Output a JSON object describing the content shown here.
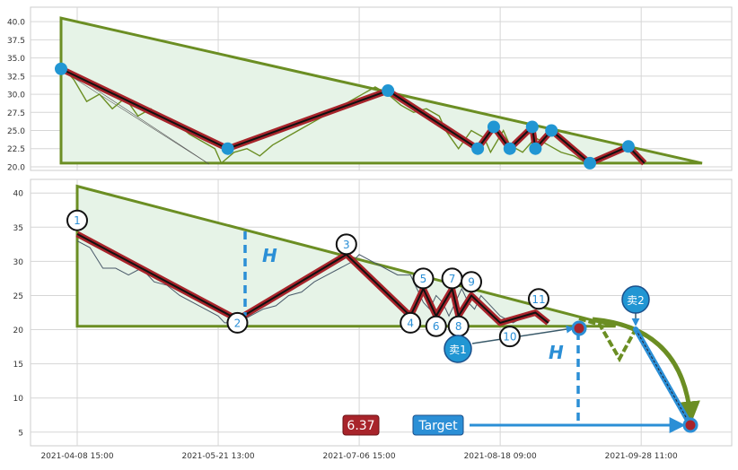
{
  "chart_data": [
    {
      "type": "line",
      "panel": "top",
      "title": "",
      "ylim": [
        19.5,
        42
      ],
      "yticks": [
        "20.0",
        "22.5",
        "25.0",
        "27.5",
        "30.0",
        "32.5",
        "35.0",
        "37.5",
        "40.0"
      ],
      "ytick_values": [
        20,
        22.5,
        25,
        27.5,
        30,
        32.5,
        35,
        37.5,
        40
      ],
      "grid": true,
      "series": [
        {
          "role": "price",
          "color": "#6b8e23",
          "points": [
            [
              0,
              34
            ],
            [
              4,
              32
            ],
            [
              8,
              29
            ],
            [
              12,
              30
            ],
            [
              16,
              28
            ],
            [
              20,
              29.5
            ],
            [
              24,
              27
            ],
            [
              28,
              28
            ],
            [
              32,
              26.5
            ],
            [
              36,
              26
            ],
            [
              40,
              24.5
            ],
            [
              44,
              23.5
            ],
            [
              48,
              22.5
            ],
            [
              50,
              20.5
            ],
            [
              54,
              22
            ],
            [
              58,
              22.5
            ],
            [
              62,
              21.5
            ],
            [
              66,
              23
            ],
            [
              70,
              24
            ],
            [
              74,
              25
            ],
            [
              78,
              26
            ],
            [
              82,
              27
            ],
            [
              86,
              28
            ],
            [
              90,
              29
            ],
            [
              94,
              30
            ],
            [
              98,
              31
            ],
            [
              102,
              30
            ],
            [
              106,
              28.5
            ],
            [
              110,
              27.5
            ],
            [
              114,
              28
            ],
            [
              118,
              27
            ],
            [
              120,
              25
            ],
            [
              124,
              22.5
            ],
            [
              128,
              25
            ],
            [
              132,
              24
            ],
            [
              134,
              22
            ],
            [
              138,
              25
            ],
            [
              140,
              23
            ],
            [
              144,
              22
            ],
            [
              148,
              24
            ],
            [
              152,
              23
            ],
            [
              156,
              22
            ],
            [
              160,
              21.5
            ],
            [
              164,
              20.5
            ],
            [
              168,
              21
            ],
            [
              172,
              22
            ],
            [
              176,
              22.5
            ],
            [
              180,
              22
            ]
          ]
        },
        {
          "role": "zigzag",
          "color": "#a8242b",
          "points": [
            [
              0,
              33.5
            ],
            [
              52,
              22.5
            ],
            [
              102,
              30.5
            ],
            [
              130,
              22.5
            ],
            [
              135,
              25.5
            ],
            [
              140,
              22.5
            ],
            [
              147,
              25.5
            ],
            [
              148,
              22.5
            ],
            [
              153,
              25
            ],
            [
              165,
              20.5
            ],
            [
              177,
              22.8
            ],
            [
              182,
              20.5
            ]
          ]
        }
      ],
      "turning_points": [
        [
          0,
          33.5
        ],
        [
          52,
          22.5
        ],
        [
          102,
          30.5
        ],
        [
          130,
          22.5
        ],
        [
          135,
          25.5
        ],
        [
          140,
          22.5
        ],
        [
          147,
          25.5
        ],
        [
          148,
          22.5
        ],
        [
          153,
          25
        ],
        [
          165,
          20.5
        ],
        [
          177,
          22.8
        ]
      ],
      "triangle": [
        [
          0,
          40.5
        ],
        [
          0,
          20.5
        ],
        [
          200,
          20.5
        ]
      ]
    },
    {
      "type": "line",
      "panel": "bottom",
      "title": "",
      "ylim": [
        3,
        42
      ],
      "yticks": [
        "5",
        "10",
        "15",
        "20",
        "25",
        "30",
        "35",
        "40"
      ],
      "ytick_values": [
        5,
        10,
        15,
        20,
        25,
        30,
        35,
        40
      ],
      "xticks": [
        "2021-04-08 15:00",
        "2021-05-21 13:00",
        "2021-07-06 15:00",
        "2021-08-18 09:00",
        "2021-09-28 11:00"
      ],
      "xtick_values": [
        0,
        44,
        88,
        132,
        176
      ],
      "grid": true,
      "series": [
        {
          "role": "price",
          "color": "#4a5a6a",
          "points": [
            [
              0,
              33
            ],
            [
              4,
              32
            ],
            [
              8,
              29
            ],
            [
              12,
              29
            ],
            [
              16,
              28
            ],
            [
              20,
              29
            ],
            [
              24,
              27
            ],
            [
              28,
              26.5
            ],
            [
              32,
              25
            ],
            [
              36,
              24
            ],
            [
              40,
              23
            ],
            [
              44,
              22
            ],
            [
              46,
              21
            ],
            [
              50,
              21
            ],
            [
              54,
              22
            ],
            [
              58,
              23
            ],
            [
              62,
              23.5
            ],
            [
              66,
              25
            ],
            [
              70,
              25.5
            ],
            [
              74,
              27
            ],
            [
              78,
              28
            ],
            [
              82,
              29
            ],
            [
              86,
              30
            ],
            [
              88,
              31
            ],
            [
              92,
              30
            ],
            [
              96,
              29
            ],
            [
              100,
              28
            ],
            [
              104,
              28
            ],
            [
              106,
              26
            ],
            [
              108,
              24
            ],
            [
              110,
              23
            ],
            [
              112,
              25
            ],
            [
              114,
              24
            ],
            [
              116,
              22
            ],
            [
              118,
              24
            ],
            [
              120,
              26
            ],
            [
              122,
              24
            ],
            [
              124,
              23
            ],
            [
              126,
              25
            ],
            [
              128,
              24
            ],
            [
              130,
              23
            ],
            [
              132,
              22
            ],
            [
              134,
              21.5
            ],
            [
              136,
              21
            ],
            [
              138,
              21.5
            ],
            [
              140,
              22
            ],
            [
              142,
              22.5
            ],
            [
              144,
              22
            ]
          ]
        },
        {
          "role": "zigzag",
          "color": "#a8242b",
          "points": [
            [
              0,
              34
            ],
            [
              50,
              21.5
            ],
            [
              84,
              31
            ],
            [
              104,
              22
            ],
            [
              108,
              26
            ],
            [
              112,
              22
            ],
            [
              117,
              26
            ],
            [
              119,
              22
            ],
            [
              123,
              25
            ],
            [
              132,
              21
            ],
            [
              143,
              22.5
            ],
            [
              147,
              21
            ]
          ]
        }
      ],
      "triangle": [
        [
          0,
          41
        ],
        [
          0,
          20.5
        ],
        [
          168,
          20.5
        ]
      ],
      "wave_labels": [
        {
          "label": "1",
          "x": 0,
          "y": 36
        },
        {
          "label": "2",
          "x": 50,
          "y": 21
        },
        {
          "label": "3",
          "x": 84,
          "y": 32.5
        },
        {
          "label": "4",
          "x": 104,
          "y": 21
        },
        {
          "label": "5",
          "x": 108,
          "y": 27.5
        },
        {
          "label": "6",
          "x": 112,
          "y": 20.5
        },
        {
          "label": "7",
          "x": 117,
          "y": 27.5
        },
        {
          "label": "8",
          "x": 119,
          "y": 20.5
        },
        {
          "label": "9",
          "x": 123,
          "y": 27
        },
        {
          "label": "10",
          "x": 135,
          "y": 19
        },
        {
          "label": "11",
          "x": 144,
          "y": 24.5
        }
      ],
      "annotations": {
        "h_label": "H",
        "h_label_2": "H",
        "sell1": "卖1",
        "sell2": "卖2",
        "target_value": "6.37",
        "target_label": "Target"
      }
    }
  ],
  "colors": {
    "triangle_line": "#6b8e23",
    "triangle_fill": "#e6f3e7",
    "zigzag_outer": "#a8242b",
    "zigzag_inner": "#111111",
    "marker": "#2196d3",
    "target_box": "#2b8fd6",
    "value_box": "#a8242b",
    "grid": "#d6d6d6"
  }
}
